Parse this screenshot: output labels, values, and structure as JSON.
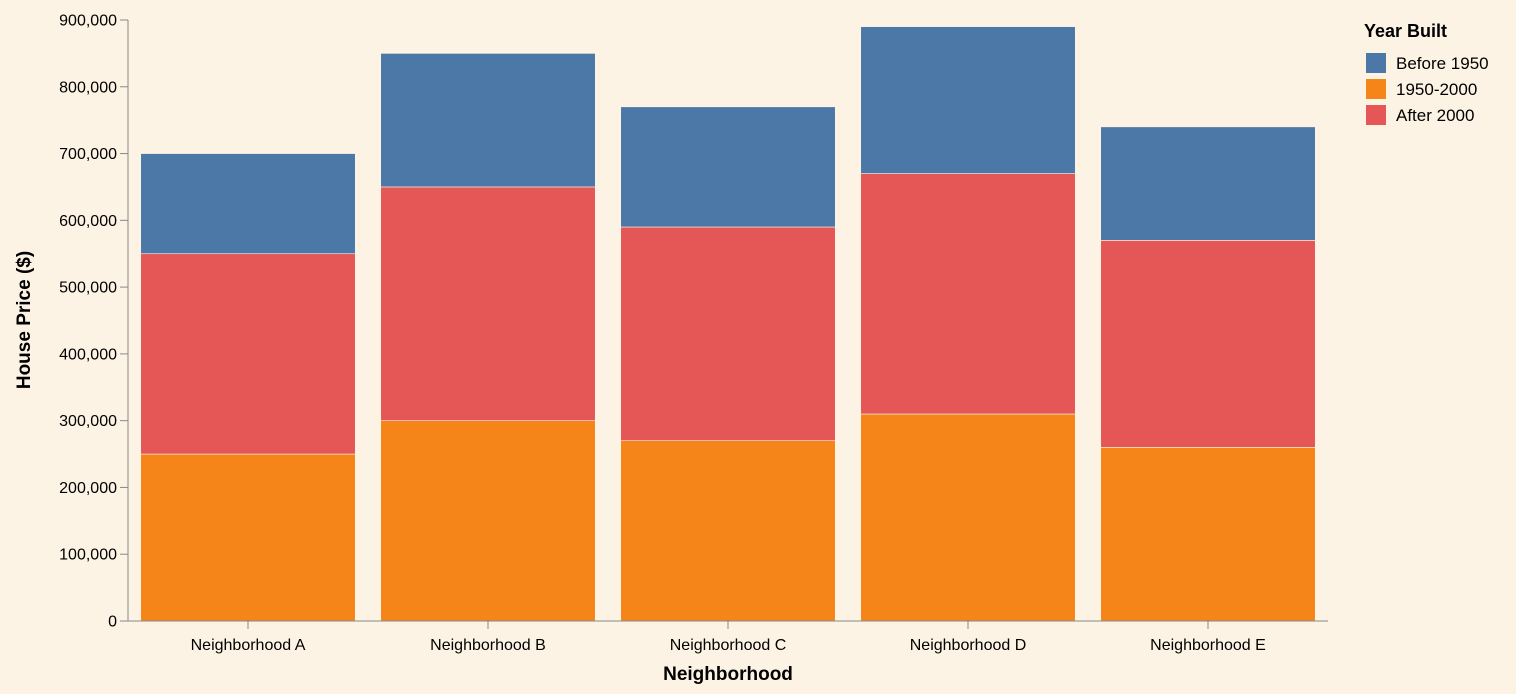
{
  "chart_data": {
    "type": "bar",
    "stacked": true,
    "categories": [
      "Neighborhood A",
      "Neighborhood B",
      "Neighborhood C",
      "Neighborhood D",
      "Neighborhood E"
    ],
    "series": [
      {
        "name": "1950-2000",
        "values": [
          250000,
          300000,
          270000,
          310000,
          260000
        ],
        "color": "#f58518"
      },
      {
        "name": "After 2000",
        "values": [
          300000,
          350000,
          320000,
          360000,
          310000
        ],
        "color": "#e45756"
      },
      {
        "name": "Before 1950",
        "values": [
          150000,
          200000,
          180000,
          220000,
          170000
        ],
        "color": "#4c78a8"
      }
    ],
    "xlabel": "Neighborhood",
    "ylabel": "House Price ($)",
    "ylim": [
      0,
      900000
    ],
    "yticks": [
      0,
      100000,
      200000,
      300000,
      400000,
      500000,
      600000,
      700000,
      800000,
      900000
    ],
    "ytick_labels": [
      "0",
      "100,000",
      "200,000",
      "300,000",
      "400,000",
      "500,000",
      "600,000",
      "700,000",
      "800,000",
      "900,000"
    ],
    "grid": false,
    "legend": {
      "title": "Year Built",
      "placement": "top-right",
      "entries": [
        {
          "label": "Before 1950",
          "color": "#4c78a8"
        },
        {
          "label": "1950-2000",
          "color": "#f58518"
        },
        {
          "label": "After 2000",
          "color": "#e45756"
        }
      ]
    }
  }
}
